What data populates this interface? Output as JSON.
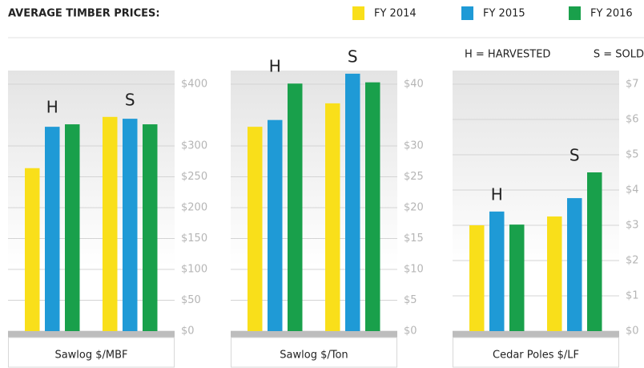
{
  "title": "AVERAGE TIMBER PRICES:",
  "legend": [
    {
      "name": "FY 2014",
      "color": "#f9df1a"
    },
    {
      "name": "FY 2015",
      "color": "#1f9ad6"
    },
    {
      "name": "FY 2016",
      "color": "#19a04b"
    }
  ],
  "notes": [
    "H = HARVESTED",
    "S = SOLD"
  ],
  "chart_data": [
    {
      "type": "bar",
      "xlabel": "Sawlog $/MBF",
      "categories": [
        "H",
        "S"
      ],
      "series": [
        {
          "values": [
            264,
            347
          ]
        },
        {
          "values": [
            331,
            344
          ]
        },
        {
          "values": [
            335,
            335
          ]
        }
      ],
      "ylim": [
        0,
        400
      ],
      "yticks": [
        {
          "value": 0,
          "label": "$0"
        },
        {
          "value": 50,
          "label": "$50"
        },
        {
          "value": 100,
          "label": "$100"
        },
        {
          "value": 150,
          "label": "$150"
        },
        {
          "value": 200,
          "label": "$200"
        },
        {
          "value": 250,
          "label": "$250"
        },
        {
          "value": 300,
          "label": "$300"
        },
        {
          "value": 400,
          "label": "$400"
        }
      ],
      "grid": true
    },
    {
      "type": "bar",
      "xlabel": "Sawlog $/Ton",
      "categories": [
        "H",
        "S"
      ],
      "series": [
        {
          "values": [
            33.1,
            36.9
          ]
        },
        {
          "values": [
            34.2,
            41.7
          ]
        },
        {
          "values": [
            40.1,
            40.3
          ]
        }
      ],
      "ylim": [
        0,
        40
      ],
      "yticks": [
        {
          "value": 0,
          "label": "$0"
        },
        {
          "value": 5,
          "label": "$5"
        },
        {
          "value": 10,
          "label": "$10"
        },
        {
          "value": 15,
          "label": "$15"
        },
        {
          "value": 20,
          "label": "$20"
        },
        {
          "value": 25,
          "label": "$25"
        },
        {
          "value": 30,
          "label": "$30"
        },
        {
          "value": 40,
          "label": "$40"
        }
      ],
      "grid": true
    },
    {
      "type": "bar",
      "xlabel": "Cedar Poles $/LF",
      "categories": [
        "H",
        "S"
      ],
      "series": [
        {
          "values": [
            3.0,
            3.25
          ]
        },
        {
          "values": [
            3.39,
            3.77
          ]
        },
        {
          "values": [
            3.02,
            4.5
          ]
        }
      ],
      "ylim": [
        0,
        7
      ],
      "yticks": [
        {
          "value": 0,
          "label": "$0"
        },
        {
          "value": 1,
          "label": "$1"
        },
        {
          "value": 2,
          "label": "$2"
        },
        {
          "value": 3,
          "label": "$3"
        },
        {
          "value": 4,
          "label": "$4"
        },
        {
          "value": 5,
          "label": "$5"
        },
        {
          "value": 6,
          "label": "$6"
        },
        {
          "value": 7,
          "label": "$7"
        }
      ],
      "grid": true
    }
  ]
}
